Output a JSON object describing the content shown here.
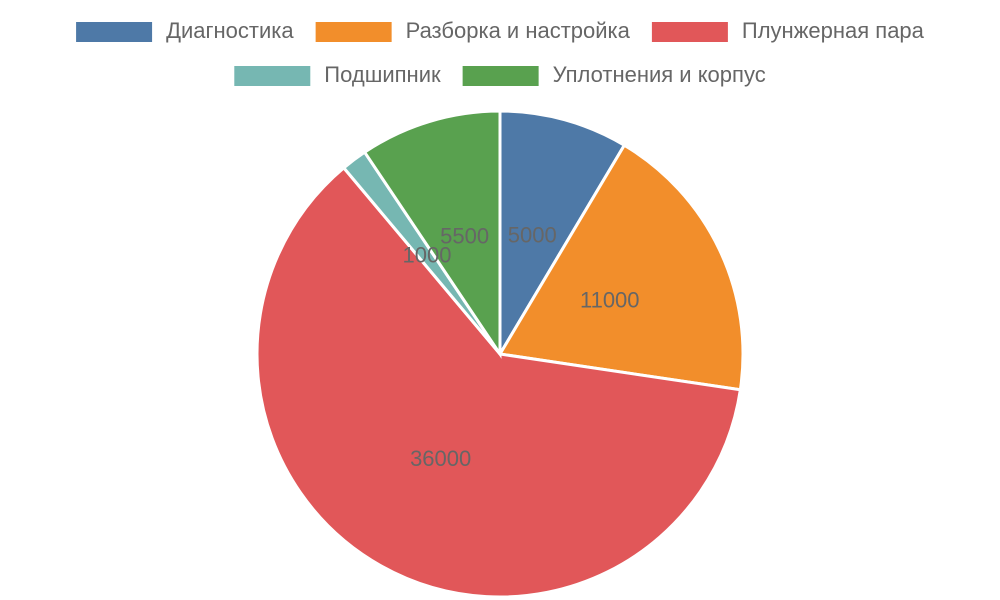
{
  "chart_data": {
    "type": "pie",
    "categories": [
      "Диагностика",
      "Разборка и настройка",
      "Плунжерная пара",
      "Подшипник",
      "Уплотнения и корпус"
    ],
    "values": [
      5000,
      11000,
      36000,
      1000,
      5500
    ],
    "colors": [
      "#4e79a7",
      "#f28e2b",
      "#e15759",
      "#76b7b2",
      "#59a14f"
    ],
    "legend": "top"
  }
}
